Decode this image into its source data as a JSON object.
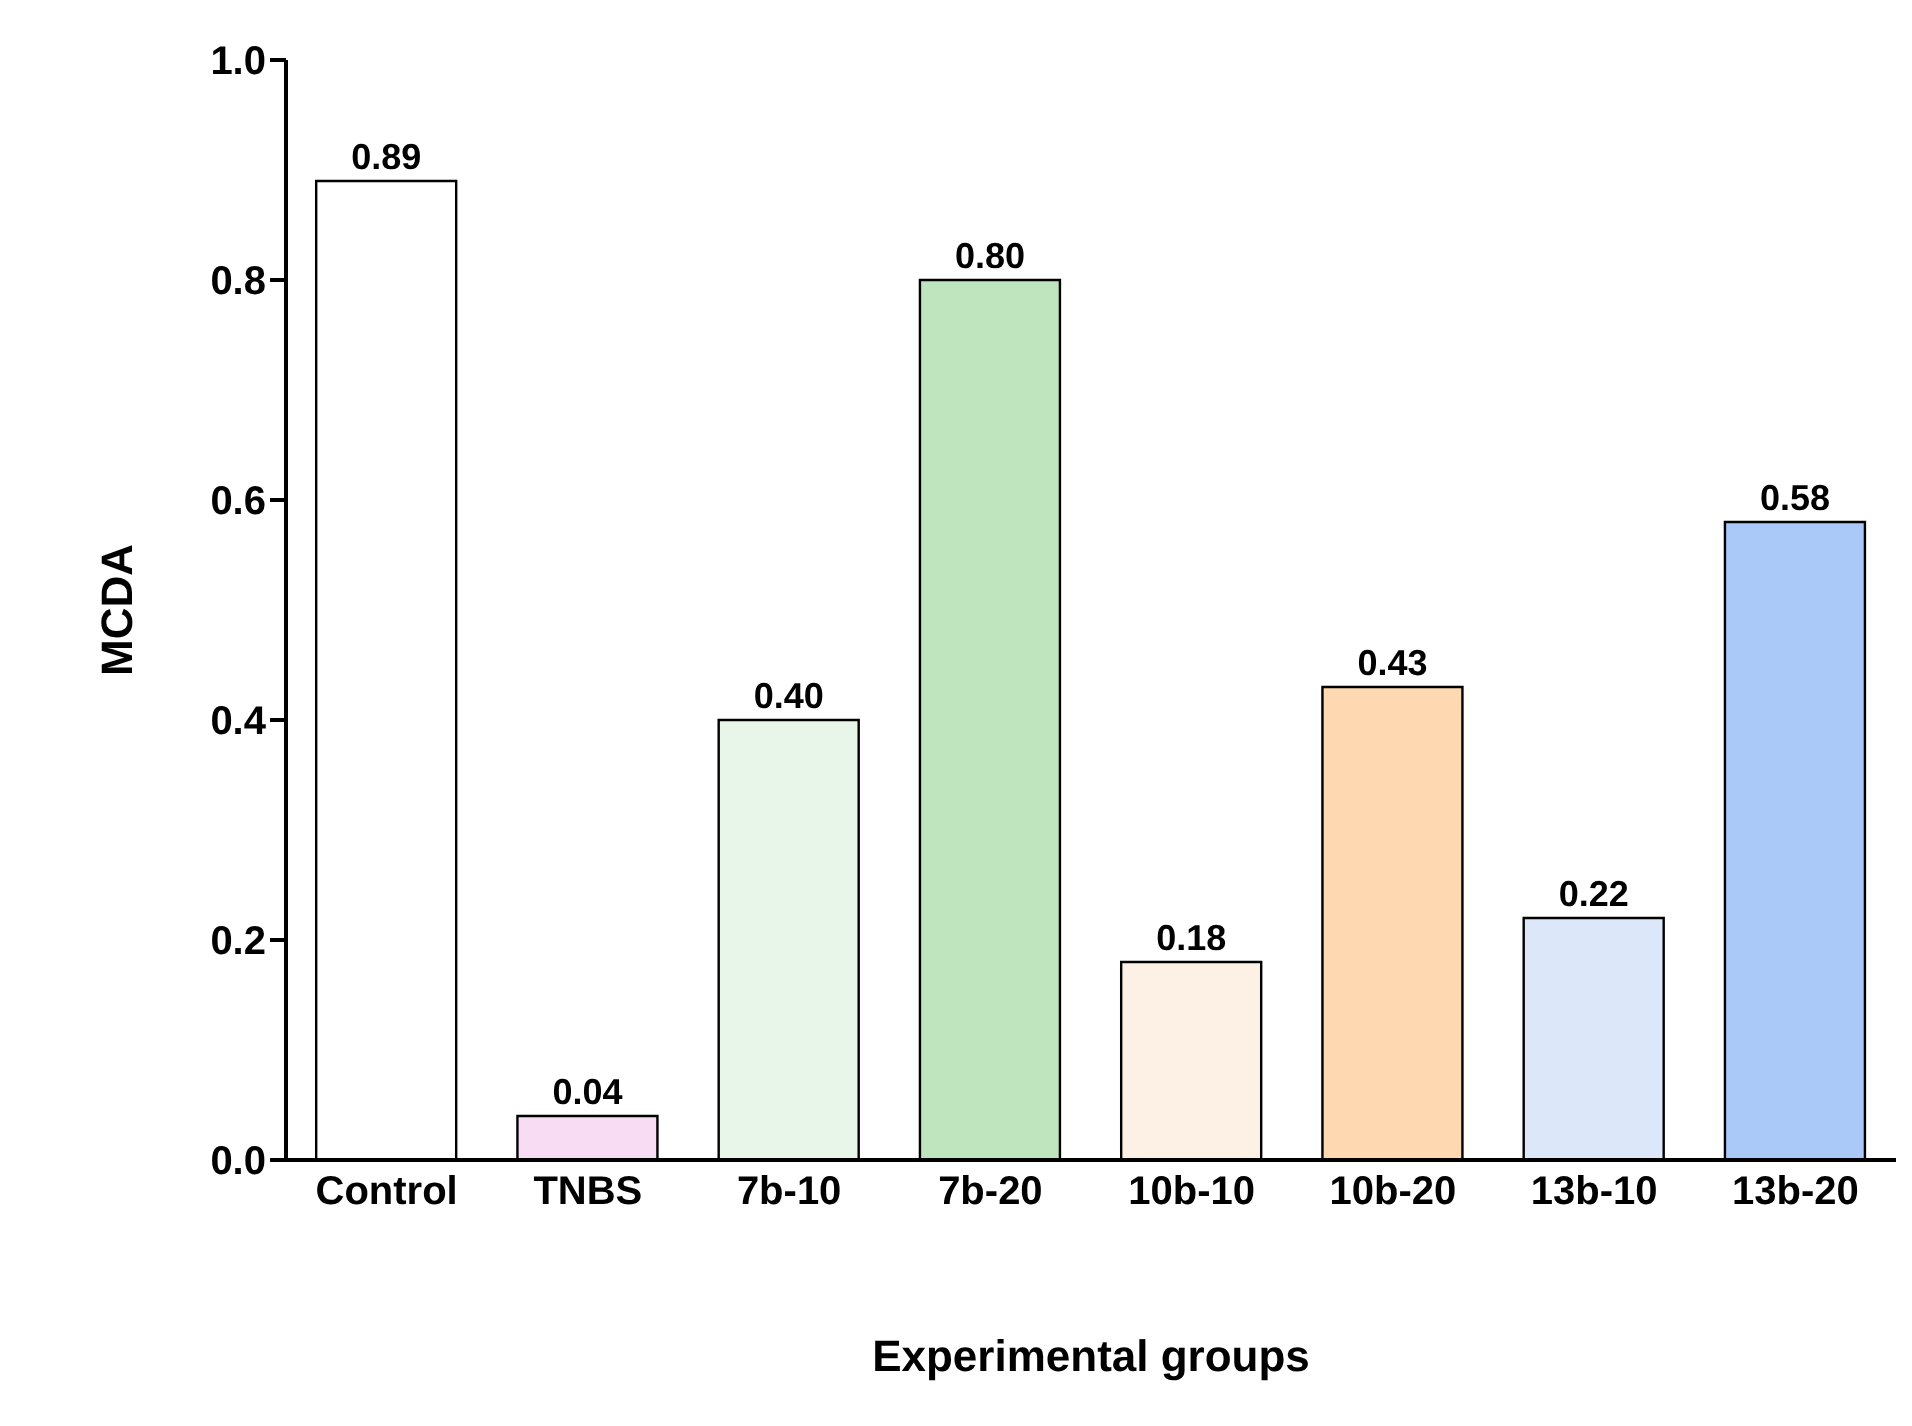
{
  "chart_data": {
    "type": "bar",
    "xlabel": "Experimental groups",
    "ylabel": "MCDA",
    "categories": [
      "Control",
      "TNBS",
      "7b-10",
      "7b-20",
      "10b-10",
      "10b-20",
      "13b-10",
      "13b-20"
    ],
    "values": [
      0.89,
      0.04,
      0.4,
      0.8,
      0.18,
      0.43,
      0.22,
      0.58
    ],
    "colors": [
      "#ffffff",
      "#f8dcf4",
      "#e8f5e9",
      "#bfe5bf",
      "#fdf1e6",
      "#fdd8b0",
      "#dce8fa",
      "#aac8f8"
    ],
    "ylim": [
      0,
      1
    ],
    "yticks": [
      {
        "value": 0,
        "label": "0.0"
      },
      {
        "value": 0.2,
        "label": "0.2"
      },
      {
        "value": 0.4,
        "label": "0.4"
      },
      {
        "value": 0.6,
        "label": "0.6"
      },
      {
        "value": 0.8,
        "label": "0.8"
      },
      {
        "value": 1,
        "label": "1.0"
      }
    ],
    "value_labels": [
      "0.89",
      "0.04",
      "0.40",
      "0.80",
      "0.18",
      "0.43",
      "0.22",
      "0.58"
    ],
    "grid": false
  }
}
